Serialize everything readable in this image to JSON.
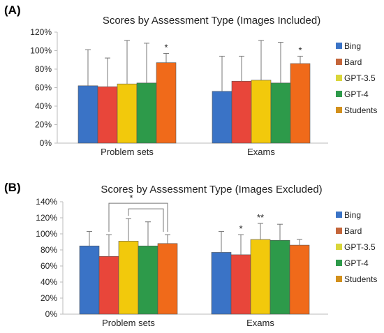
{
  "colors": {
    "Bing": "#3a73c6",
    "Bard": "#e8463a",
    "GPT-3.5": "#f2c90c",
    "GPT-4": "#2d9a4a",
    "Students": "#f06a1a",
    "legend_Bard": "#c4653a",
    "legend_Students": "#d2901c",
    "legend_GPT-3.5": "#d9d63a",
    "axis": "#bbbbbb",
    "error_bar": "#777777"
  },
  "chart_data": [
    {
      "panel": "(A)",
      "type": "bar",
      "title": "Scores by Assessment Type (Images Included)",
      "categories": [
        "Problem sets",
        "Exams"
      ],
      "yticks": [
        "0%",
        "20%",
        "40%",
        "60%",
        "80%",
        "100%",
        "120%"
      ],
      "ylim": [
        0,
        120
      ],
      "grid": false,
      "legend_position": "right",
      "legend": [
        "Bing",
        "Bard",
        "GPT-3.5",
        "GPT-4",
        "Students"
      ],
      "series": [
        {
          "name": "Bing",
          "values": [
            62,
            56
          ],
          "errors": [
            39,
            38
          ]
        },
        {
          "name": "Bard",
          "values": [
            61,
            67
          ],
          "errors": [
            31,
            27
          ]
        },
        {
          "name": "GPT-3.5",
          "values": [
            64,
            68
          ],
          "errors": [
            47,
            43
          ]
        },
        {
          "name": "GPT-4",
          "values": [
            65,
            65
          ],
          "errors": [
            43,
            44
          ]
        },
        {
          "name": "Students",
          "values": [
            87,
            86
          ],
          "errors": [
            10,
            8
          ]
        }
      ],
      "annotations": [
        {
          "text": "*",
          "category": 0,
          "series": 4
        },
        {
          "text": "*",
          "category": 1,
          "series": 4
        }
      ]
    },
    {
      "panel": "(B)",
      "type": "bar",
      "title": "Scores by Assessment Type (Images Excluded)",
      "categories": [
        "Problem sets",
        "Exams"
      ],
      "yticks": [
        "0%",
        "20%",
        "40%",
        "60%",
        "80%",
        "100%",
        "120%",
        "140%"
      ],
      "ylim": [
        0,
        140
      ],
      "grid": false,
      "legend_position": "right",
      "legend": [
        "Bing",
        "Bard",
        "GPT-3.5",
        "GPT-4",
        "Students"
      ],
      "series": [
        {
          "name": "Bing",
          "values": [
            85,
            77
          ],
          "errors": [
            18,
            26
          ]
        },
        {
          "name": "Bard",
          "values": [
            72,
            74
          ],
          "errors": [
            27,
            25
          ]
        },
        {
          "name": "GPT-3.5",
          "values": [
            91,
            93
          ],
          "errors": [
            28,
            20
          ]
        },
        {
          "name": "GPT-4",
          "values": [
            85,
            92
          ],
          "errors": [
            30,
            20
          ]
        },
        {
          "name": "Students",
          "values": [
            88,
            86
          ],
          "errors": [
            11,
            7
          ]
        }
      ],
      "annotations": [
        {
          "text": "*",
          "category": 0,
          "bracket": [
            1,
            2,
            4
          ]
        },
        {
          "text": "*",
          "category": 1,
          "series": 1
        },
        {
          "text": "**",
          "category": 1,
          "series": 2
        }
      ]
    }
  ]
}
